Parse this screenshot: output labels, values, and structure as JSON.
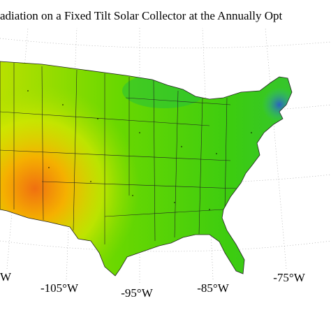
{
  "title": "adiation on a Fixed Tilt Solar Collector at the Annually Opt",
  "longitude_labels": [
    "W",
    "-105°W",
    "-95°W",
    "-85°W",
    "-75°W"
  ]
}
